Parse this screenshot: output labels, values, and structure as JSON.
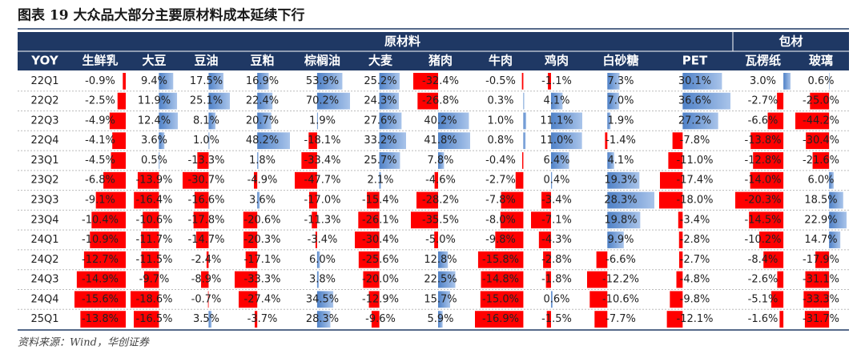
{
  "title": "图表 19  大众品大部分主要原材料成本延续下行",
  "table": {
    "group_headers": [
      {
        "label": "原材料",
        "span": 11
      },
      {
        "label": "包材",
        "span": 2
      }
    ],
    "columns": [
      "YOY",
      "生鲜乳",
      "大豆",
      "豆油",
      "豆粕",
      "棕榈油",
      "大麦",
      "猪肉",
      "牛肉",
      "鸡肉",
      "白砂糖",
      "PET",
      "瓦楞纸",
      "玻璃"
    ],
    "rows": [
      {
        "label": "22Q1",
        "cells": [
          {
            "value": -0.9,
            "label": "-0.9%"
          },
          {
            "value": 9.4,
            "label": "9.4%"
          },
          {
            "value": 17.5,
            "label": "17.5%"
          },
          {
            "value": 16.9,
            "label": "16.9%"
          },
          {
            "value": 53.9,
            "label": "53.9%"
          },
          {
            "value": 25.2,
            "label": "25.2%"
          },
          {
            "value": -32.4,
            "label": "-32.4%"
          },
          {
            "value": -0.5,
            "label": "-0.5%"
          },
          {
            "value": -1.1,
            "label": "-1.1%"
          },
          {
            "value": 7.3,
            "label": "7.3%"
          },
          {
            "value": 30.1,
            "label": "30.1%"
          },
          {
            "value": 3.0,
            "label": "3.0%"
          },
          {
            "value": 0.6,
            "label": "0.6%"
          }
        ]
      },
      {
        "label": "22Q2",
        "cells": [
          {
            "value": -2.5,
            "label": "-2.5%"
          },
          {
            "value": 11.9,
            "label": "11.9%"
          },
          {
            "value": 25.1,
            "label": "25.1%"
          },
          {
            "value": 22.4,
            "label": "22.4%"
          },
          {
            "value": 70.2,
            "label": "70.2%"
          },
          {
            "value": 24.3,
            "label": "24.3%"
          },
          {
            "value": -26.8,
            "label": "-26.8%"
          },
          {
            "value": 0.3,
            "label": "0.3%"
          },
          {
            "value": 4.1,
            "label": "4.1%"
          },
          {
            "value": 7.0,
            "label": "7.0%"
          },
          {
            "value": 36.6,
            "label": "36.6%"
          },
          {
            "value": -2.7,
            "label": "-2.7%"
          },
          {
            "value": -25.0,
            "label": "-25.0%"
          }
        ]
      },
      {
        "label": "22Q3",
        "cells": [
          {
            "value": -4.9,
            "label": "-4.9%"
          },
          {
            "value": 12.4,
            "label": "12.4%"
          },
          {
            "value": 8.1,
            "label": "8.1%"
          },
          {
            "value": 20.7,
            "label": "20.7%"
          },
          {
            "value": 1.9,
            "label": "1.9%"
          },
          {
            "value": 27.6,
            "label": "27.6%"
          },
          {
            "value": 40.2,
            "label": "40.2%"
          },
          {
            "value": 1.0,
            "label": "1.0%"
          },
          {
            "value": 11.1,
            "label": "11.1%"
          },
          {
            "value": 1.9,
            "label": "1.9%"
          },
          {
            "value": 27.2,
            "label": "27.2%"
          },
          {
            "value": -6.6,
            "label": "-6.6%"
          },
          {
            "value": -44.2,
            "label": "-44.2%"
          }
        ]
      },
      {
        "label": "22Q4",
        "cells": [
          {
            "value": -4.1,
            "label": "-4.1%"
          },
          {
            "value": 3.6,
            "label": "3.6%"
          },
          {
            "value": 1.0,
            "label": "1.0%"
          },
          {
            "value": 48.2,
            "label": "48.2%"
          },
          {
            "value": -18.1,
            "label": "-18.1%"
          },
          {
            "value": 33.2,
            "label": "33.2%"
          },
          {
            "value": 41.8,
            "label": "41.8%"
          },
          {
            "value": 0.8,
            "label": "0.8%"
          },
          {
            "value": 11.0,
            "label": "11.0%"
          },
          {
            "value": -1.4,
            "label": "-1.4%"
          },
          {
            "value": -7.8,
            "label": "-7.8%"
          },
          {
            "value": -13.8,
            "label": "-13.8%"
          },
          {
            "value": -30.4,
            "label": "-30.4%"
          }
        ]
      },
      {
        "label": "23Q1",
        "cells": [
          {
            "value": -4.5,
            "label": "-4.5%"
          },
          {
            "value": 0.5,
            "label": "0.5%"
          },
          {
            "value": -13.3,
            "label": "-13.3%"
          },
          {
            "value": 1.8,
            "label": "1.8%"
          },
          {
            "value": -33.4,
            "label": "-33.4%"
          },
          {
            "value": 25.7,
            "label": "25.7%"
          },
          {
            "value": 7.8,
            "label": "7.8%"
          },
          {
            "value": -0.4,
            "label": "-0.4%"
          },
          {
            "value": 6.4,
            "label": "6.4%"
          },
          {
            "value": 4.1,
            "label": "4.1%"
          },
          {
            "value": -11.0,
            "label": "-11.0%"
          },
          {
            "value": -12.8,
            "label": "-12.8%"
          },
          {
            "value": -21.6,
            "label": "-21.6%"
          }
        ]
      },
      {
        "label": "23Q2",
        "cells": [
          {
            "value": -6.8,
            "label": "-6.8%"
          },
          {
            "value": -13.9,
            "label": "-13.9%"
          },
          {
            "value": -30.7,
            "label": "-30.7%"
          },
          {
            "value": -4.9,
            "label": "-4.9%"
          },
          {
            "value": -47.7,
            "label": "-47.7%"
          },
          {
            "value": 2.1,
            "label": "2.1%"
          },
          {
            "value": -4.6,
            "label": "-4.6%"
          },
          {
            "value": -2.7,
            "label": "-2.7%"
          },
          {
            "value": 0.4,
            "label": "0.4%"
          },
          {
            "value": 19.3,
            "label": "19.3%"
          },
          {
            "value": -17.4,
            "label": "-17.4%"
          },
          {
            "value": -14.0,
            "label": "-14.0%"
          },
          {
            "value": 6.0,
            "label": "6.0%"
          }
        ]
      },
      {
        "label": "23Q3",
        "cells": [
          {
            "value": -9.1,
            "label": "-9.1%"
          },
          {
            "value": -16.4,
            "label": "-16.4%"
          },
          {
            "value": -16.6,
            "label": "-16.6%"
          },
          {
            "value": 3.6,
            "label": "3.6%"
          },
          {
            "value": -17.0,
            "label": "-17.0%"
          },
          {
            "value": -15.4,
            "label": "-15.4%"
          },
          {
            "value": -28.2,
            "label": "-28.2%"
          },
          {
            "value": -7.8,
            "label": "-7.8%"
          },
          {
            "value": -3.4,
            "label": "-3.4%"
          },
          {
            "value": 28.3,
            "label": "28.3%"
          },
          {
            "value": -18.0,
            "label": "-18.0%"
          },
          {
            "value": -20.3,
            "label": "-20.3%"
          },
          {
            "value": 18.5,
            "label": "18.5%"
          }
        ]
      },
      {
        "label": "23Q4",
        "cells": [
          {
            "value": -10.4,
            "label": "-10.4%"
          },
          {
            "value": -10.6,
            "label": "-10.6%"
          },
          {
            "value": -17.8,
            "label": "-17.8%"
          },
          {
            "value": -20.6,
            "label": "-20.6%"
          },
          {
            "value": -11.3,
            "label": "-11.3%"
          },
          {
            "value": -26.1,
            "label": "-26.1%"
          },
          {
            "value": -35.5,
            "label": "-35.5%"
          },
          {
            "value": -8.0,
            "label": "-8.0%"
          },
          {
            "value": -7.1,
            "label": "-7.1%"
          },
          {
            "value": 19.8,
            "label": "19.8%"
          },
          {
            "value": -3.4,
            "label": "-3.4%"
          },
          {
            "value": -14.5,
            "label": "-14.5%"
          },
          {
            "value": 22.9,
            "label": "22.9%"
          }
        ]
      },
      {
        "label": "24Q1",
        "cells": [
          {
            "value": -10.9,
            "label": "-10.9%"
          },
          {
            "value": -11.7,
            "label": "-11.7%"
          },
          {
            "value": -14.7,
            "label": "-14.7%"
          },
          {
            "value": -20.3,
            "label": "-20.3%"
          },
          {
            "value": -3.4,
            "label": "-3.4%"
          },
          {
            "value": -30.4,
            "label": "-30.4%"
          },
          {
            "value": -5.0,
            "label": "-5.0%"
          },
          {
            "value": -9.8,
            "label": "-9.8%"
          },
          {
            "value": -4.3,
            "label": "-4.3%"
          },
          {
            "value": 9.9,
            "label": "9.9%"
          },
          {
            "value": -2.8,
            "label": "-2.8%"
          },
          {
            "value": -10.2,
            "label": "-10.2%"
          },
          {
            "value": 14.7,
            "label": "14.7%"
          }
        ]
      },
      {
        "label": "24Q2",
        "cells": [
          {
            "value": -12.7,
            "label": "-12.7%"
          },
          {
            "value": -11.5,
            "label": "-11.5%"
          },
          {
            "value": -2.4,
            "label": "-2.4%"
          },
          {
            "value": -17.1,
            "label": "-17.1%"
          },
          {
            "value": 6.0,
            "label": "6.0%"
          },
          {
            "value": -25.6,
            "label": "-25.6%"
          },
          {
            "value": 12.8,
            "label": "12.8%"
          },
          {
            "value": -15.8,
            "label": "-15.8%"
          },
          {
            "value": -2.8,
            "label": "-2.8%"
          },
          {
            "value": -6.6,
            "label": "-6.6%"
          },
          {
            "value": -2.7,
            "label": "-2.7%"
          },
          {
            "value": -8.4,
            "label": "-8.4%"
          },
          {
            "value": -17.9,
            "label": "-17.9%"
          }
        ]
      },
      {
        "label": "24Q3",
        "cells": [
          {
            "value": -14.9,
            "label": "-14.9%"
          },
          {
            "value": -9.7,
            "label": "-9.7%"
          },
          {
            "value": -8.9,
            "label": "-8.9%"
          },
          {
            "value": -33.3,
            "label": "-33.3%"
          },
          {
            "value": 3.8,
            "label": "3.8%"
          },
          {
            "value": -20.0,
            "label": "-20.0%"
          },
          {
            "value": 22.5,
            "label": "22.5%"
          },
          {
            "value": -14.8,
            "label": "-14.8%"
          },
          {
            "value": -1.8,
            "label": "-1.8%"
          },
          {
            "value": -12.2,
            "label": "-12.2%"
          },
          {
            "value": -4.8,
            "label": "-4.8%"
          },
          {
            "value": -2.6,
            "label": "-2.6%"
          },
          {
            "value": -31.1,
            "label": "-31.1%"
          }
        ]
      },
      {
        "label": "24Q4",
        "cells": [
          {
            "value": -15.6,
            "label": "-15.6%"
          },
          {
            "value": -18.6,
            "label": "-18.6%"
          },
          {
            "value": -0.7,
            "label": "-0.7%"
          },
          {
            "value": -27.4,
            "label": "-27.4%"
          },
          {
            "value": 34.5,
            "label": "34.5%"
          },
          {
            "value": -12.9,
            "label": "-12.9%"
          },
          {
            "value": 15.7,
            "label": "15.7%"
          },
          {
            "value": -15.0,
            "label": "-15.0%"
          },
          {
            "value": 0.6,
            "label": "0.6%"
          },
          {
            "value": -10.6,
            "label": "-10.6%"
          },
          {
            "value": -9.8,
            "label": "-9.8%"
          },
          {
            "value": -5.1,
            "label": "-5.1%"
          },
          {
            "value": -33.3,
            "label": "-33.3%"
          }
        ]
      },
      {
        "label": "25Q1",
        "cells": [
          {
            "value": -13.8,
            "label": "-13.8%"
          },
          {
            "value": -16.5,
            "label": "-16.5%"
          },
          {
            "value": 3.5,
            "label": "3.5%"
          },
          {
            "value": -3.7,
            "label": "-3.7%"
          },
          {
            "value": 28.3,
            "label": "28.3%"
          },
          {
            "value": -9.6,
            "label": "-9.6%"
          },
          {
            "value": 5.9,
            "label": "5.9%"
          },
          {
            "value": -16.9,
            "label": "-16.9%"
          },
          {
            "value": -1.5,
            "label": "-1.5%"
          },
          {
            "value": -7.7,
            "label": "-7.7%"
          },
          {
            "value": -12.1,
            "label": "-12.1%"
          },
          {
            "value": -1.6,
            "label": "-1.6%"
          },
          {
            "value": -31.7,
            "label": "-31.7%"
          }
        ]
      }
    ]
  },
  "source": "资料来源：Wind，华创证券"
}
